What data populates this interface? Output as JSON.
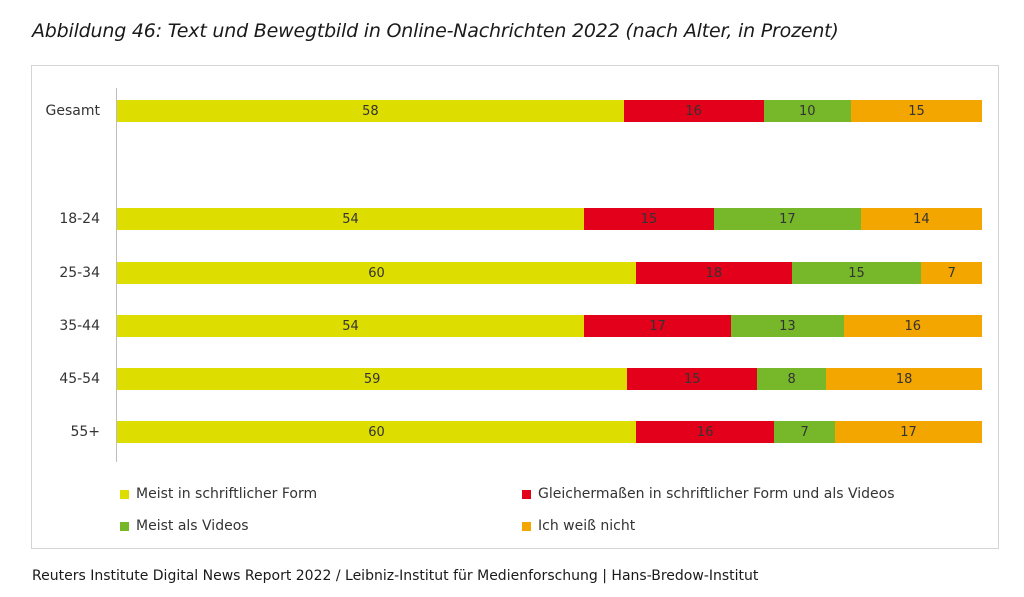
{
  "title": "Abbildung 46: Text und Bewegtbild in Online-Nachrichten 2022 (nach Alter, in Prozent)",
  "source": "Reuters Institute Digital News Report 2022 / Leibniz-Institut für Medienforschung | Hans-Bredow-Institut",
  "chart_data": {
    "type": "bar",
    "orientation": "horizontal",
    "stacked": true,
    "title": "Abbildung 46: Text und Bewegtbild in Online-Nachrichten 2022 (nach Alter, in Prozent)",
    "categories": [
      "Gesamt",
      "18-24",
      "25-34",
      "35-44",
      "45-54",
      "55+"
    ],
    "series": [
      {
        "name": "Meist in schriftlicher Form",
        "color": "#dddd00",
        "values": [
          58,
          54,
          60,
          54,
          59,
          60
        ]
      },
      {
        "name": "Gleichermaßen in schriftlicher Form und als Videos",
        "color": "#e3001b",
        "values": [
          16,
          15,
          18,
          17,
          15,
          16
        ]
      },
      {
        "name": "Meist als Videos",
        "color": "#77b82a",
        "values": [
          10,
          17,
          15,
          13,
          8,
          7
        ]
      },
      {
        "name": "Ich weiß nicht",
        "color": "#f4a600",
        "values": [
          15,
          14,
          7,
          16,
          18,
          17
        ]
      }
    ],
    "legend_position": "bottom",
    "grid": false
  }
}
